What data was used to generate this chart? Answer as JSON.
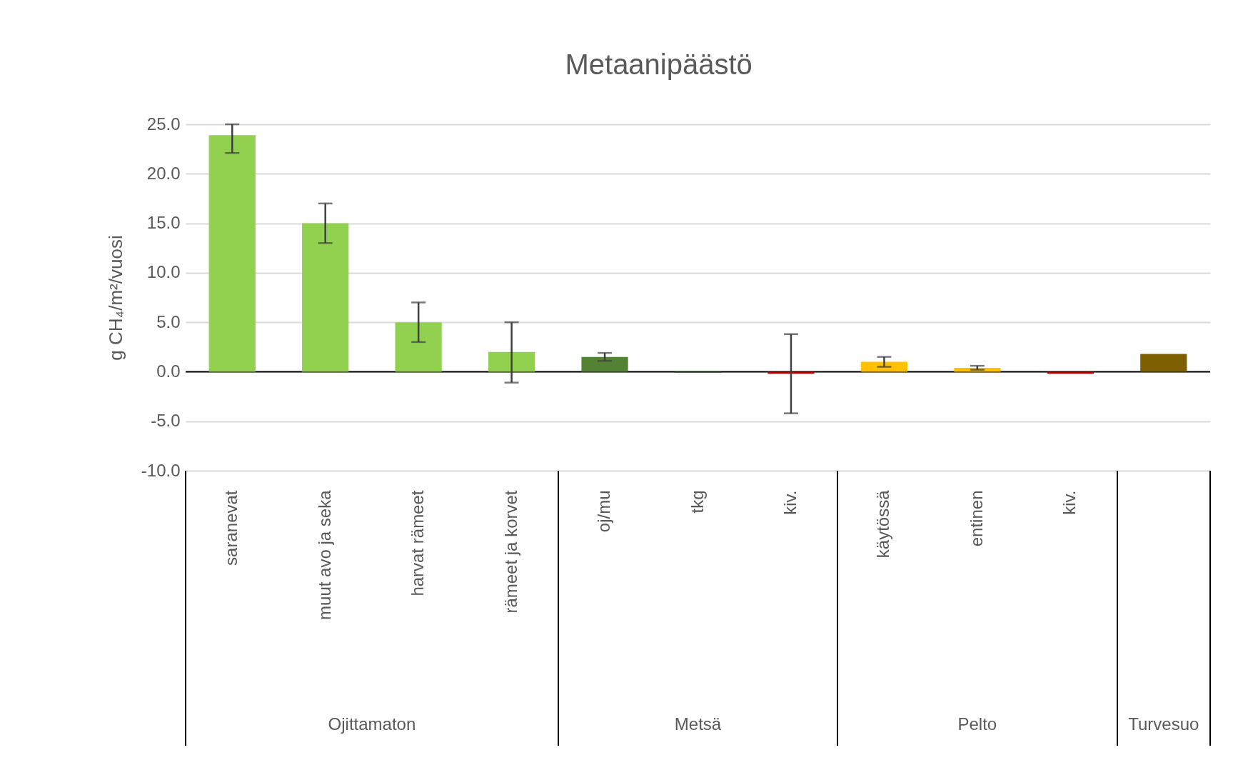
{
  "chart_data": {
    "type": "bar",
    "title": "Metaanipäästö",
    "ylabel": "g CH₄/m²/vuosi",
    "categories": [
      "saranevat",
      "muut avo ja seka",
      "harvat rämeet",
      "rämeet ja korvet",
      "oj/mu",
      "tkg",
      "kiv.",
      "käytössä",
      "entinen",
      "kiv.",
      null
    ],
    "values": [
      23.9,
      15.0,
      5.0,
      2.0,
      1.5,
      -0.1,
      -0.2,
      1.0,
      0.4,
      -0.2,
      1.8
    ],
    "colors": [
      "#92d050",
      "#92d050",
      "#92d050",
      "#92d050",
      "#548235",
      "#375623",
      "#c00000",
      "#ffc000",
      "#ffc000",
      "#c00000",
      "#7f6000"
    ],
    "errors": [
      [
        22.1,
        25.0
      ],
      2.0,
      2.0,
      [
        -1.1,
        5.0
      ],
      0.4,
      null,
      4.0,
      0.5,
      0.2,
      null,
      null
    ],
    "ylim": [
      -10,
      25
    ],
    "yticks": [
      {
        "value": -10,
        "label": "-10.0"
      },
      {
        "value": -5,
        "label": "-5.0"
      },
      {
        "value": 0,
        "label": "0.0"
      },
      {
        "value": 5,
        "label": "5.0"
      },
      {
        "value": 10,
        "label": "10.0"
      },
      {
        "value": 15,
        "label": "15.0"
      },
      {
        "value": 20,
        "label": "20.0"
      },
      {
        "value": 25,
        "label": "25.0"
      }
    ],
    "ref_lines": [
      {
        "axis": "y",
        "value": 0,
        "color": "#000000"
      }
    ],
    "annotations": [
      "Ojittamaton",
      "Metsä",
      "Pelto",
      "Turvesuo"
    ],
    "grid": "y",
    "legend": false
  }
}
